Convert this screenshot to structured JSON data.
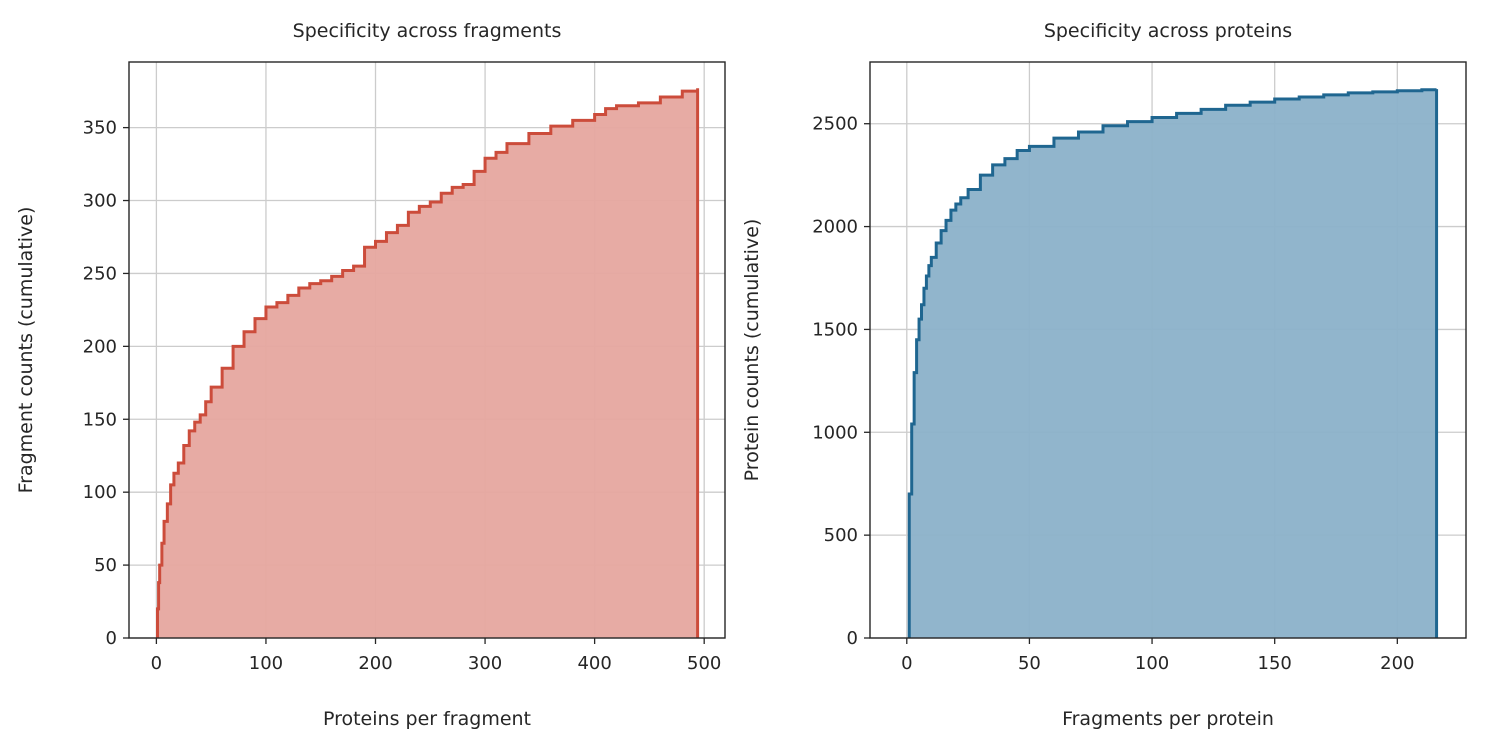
{
  "chart_data": [
    {
      "type": "area",
      "title": "Specificity across fragments",
      "xlabel": "Proteins per fragment",
      "ylabel": "Fragment counts (cumulative)",
      "xlim": [
        -25,
        519
      ],
      "ylim": [
        0,
        395
      ],
      "xticks": [
        0,
        100,
        200,
        300,
        400,
        500
      ],
      "yticks": [
        0,
        50,
        100,
        150,
        200,
        250,
        300,
        350
      ],
      "grid": true,
      "color": "#cc4c3b",
      "fill_color": "#e6a79f",
      "x": [
        1,
        2,
        3,
        5,
        7,
        10,
        13,
        16,
        20,
        25,
        30,
        35,
        40,
        45,
        50,
        60,
        70,
        80,
        90,
        100,
        110,
        120,
        130,
        140,
        150,
        160,
        170,
        180,
        190,
        200,
        210,
        220,
        230,
        240,
        250,
        260,
        270,
        280,
        290,
        300,
        310,
        320,
        340,
        360,
        380,
        400,
        410,
        420,
        440,
        460,
        480,
        494
      ],
      "y": [
        20,
        38,
        50,
        65,
        80,
        92,
        105,
        113,
        120,
        132,
        142,
        148,
        153,
        162,
        172,
        185,
        200,
        210,
        219,
        227,
        230,
        235,
        240,
        243,
        245,
        248,
        252,
        255,
        268,
        272,
        278,
        283,
        292,
        296,
        299,
        305,
        309,
        311,
        320,
        329,
        333,
        339,
        346,
        351,
        355,
        359,
        363,
        365,
        367,
        371,
        375,
        377
      ]
    },
    {
      "type": "area",
      "title": "Specificity across proteins",
      "xlabel": "Fragments per protein",
      "ylabel": "Protein counts (cumulative)",
      "xlim": [
        -15,
        228
      ],
      "ylim": [
        0,
        2800
      ],
      "xticks": [
        0,
        50,
        100,
        150,
        200
      ],
      "yticks": [
        0,
        500,
        1000,
        1500,
        2000,
        2500
      ],
      "grid": true,
      "color": "#1f6690",
      "fill_color": "#8bb1c9",
      "x": [
        1,
        2,
        3,
        4,
        5,
        6,
        7,
        8,
        9,
        10,
        12,
        14,
        16,
        18,
        20,
        22,
        25,
        30,
        35,
        40,
        45,
        50,
        60,
        70,
        80,
        90,
        100,
        110,
        120,
        130,
        140,
        150,
        160,
        170,
        180,
        190,
        200,
        210,
        216
      ],
      "y": [
        700,
        1040,
        1290,
        1450,
        1550,
        1620,
        1700,
        1760,
        1810,
        1850,
        1920,
        1980,
        2030,
        2080,
        2110,
        2140,
        2180,
        2250,
        2300,
        2330,
        2370,
        2390,
        2430,
        2460,
        2490,
        2510,
        2530,
        2550,
        2570,
        2590,
        2605,
        2620,
        2630,
        2640,
        2650,
        2655,
        2660,
        2665,
        2668
      ]
    }
  ]
}
